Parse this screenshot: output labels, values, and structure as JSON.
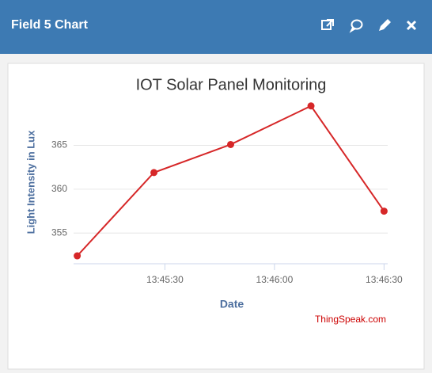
{
  "header": {
    "title": "Field 5 Chart"
  },
  "chart_data": {
    "type": "line",
    "title": "IOT Solar Panel Monitoring",
    "x_label": "Date",
    "y_label": "Light Intensity in Lux",
    "credit": "ThingSpeak.com",
    "x": [
      "13:45:06",
      "13:45:27",
      "13:45:48",
      "13:46:10",
      "13:46:30"
    ],
    "series": [
      {
        "name": "Light Intensity in Lux",
        "color": "#d62728",
        "values": [
          352.4,
          361.9,
          365.1,
          369.5,
          357.5
        ]
      }
    ],
    "xlim": [
      "13:45:05",
      "13:46:31"
    ],
    "xticks": [
      "13:45:30",
      "13:46:00",
      "13:46:30"
    ],
    "ylim": [
      351.5,
      370.2
    ],
    "yticks": [
      355,
      360,
      365
    ],
    "grid": true,
    "legend": false
  }
}
